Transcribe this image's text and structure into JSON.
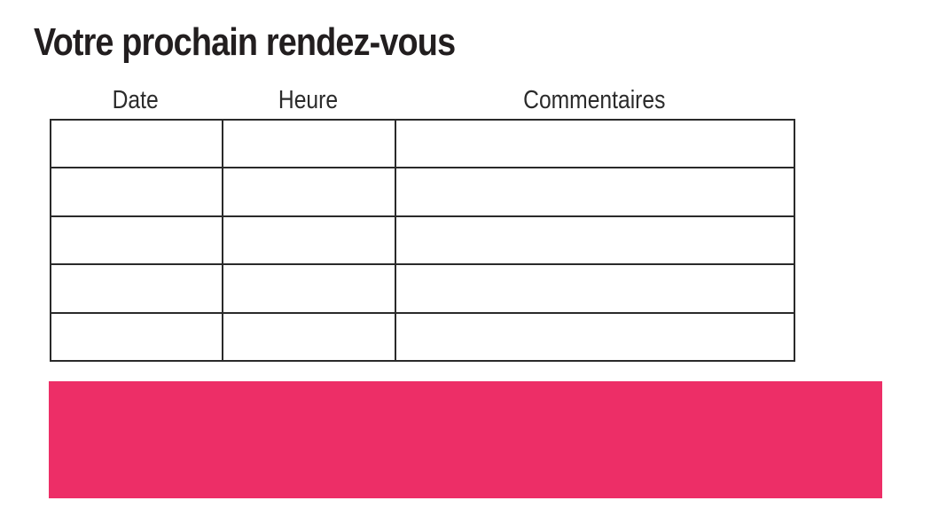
{
  "title": "Votre prochain rendez-vous",
  "table": {
    "headers": [
      "Date",
      "Heure",
      "Commentaires"
    ],
    "rows": [
      [
        "",
        "",
        ""
      ],
      [
        "",
        "",
        ""
      ],
      [
        "",
        "",
        ""
      ],
      [
        "",
        "",
        ""
      ],
      [
        "",
        "",
        ""
      ]
    ]
  },
  "banner": {
    "label": "",
    "color": "#ED2E67"
  },
  "colors": {
    "background": "#ffffff",
    "accent_pink": "#ED2E67",
    "table_border": "#2a2a2a",
    "title_text": "#221e1f",
    "header_text": "#2b2b2b"
  }
}
